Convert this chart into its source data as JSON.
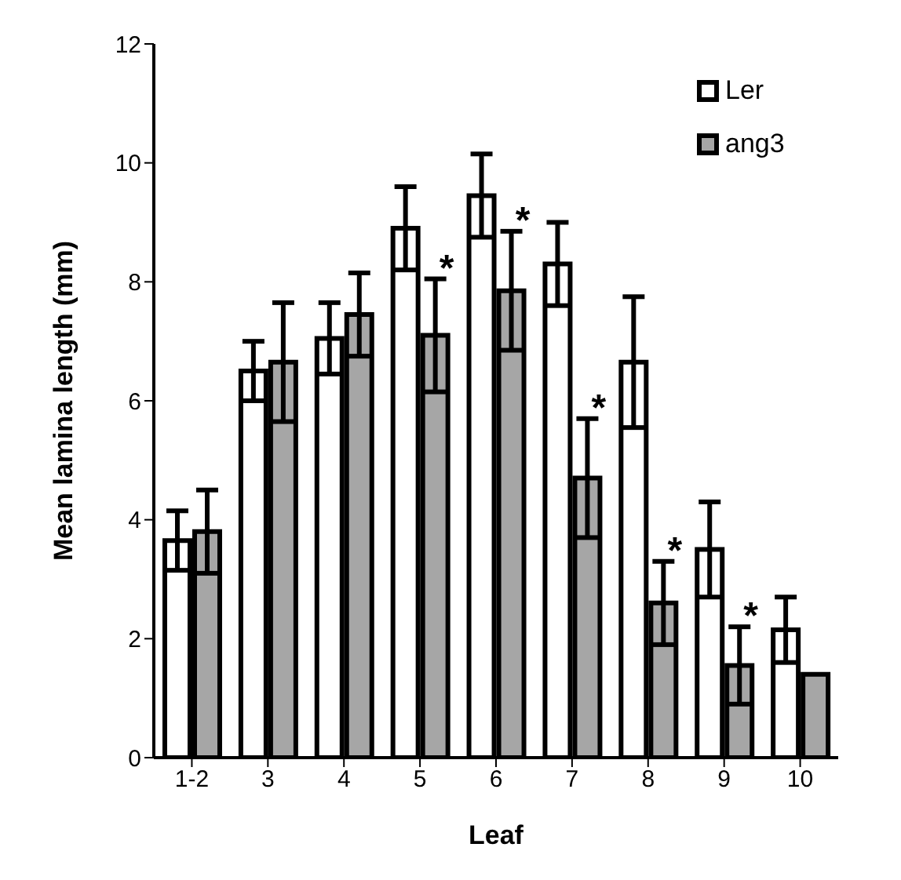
{
  "chart_data": {
    "type": "bar",
    "xlabel": "Leaf",
    "ylabel": "Mean lamina length (mm)",
    "categories": [
      "1-2",
      "3",
      "4",
      "5",
      "6",
      "7",
      "8",
      "9",
      "10"
    ],
    "series": [
      {
        "name": "Ler",
        "color": "#ffffff",
        "values": [
          3.65,
          6.5,
          7.05,
          8.9,
          9.45,
          8.3,
          6.65,
          3.5,
          2.15
        ],
        "errors": [
          0.5,
          0.5,
          0.6,
          0.7,
          0.7,
          0.7,
          1.1,
          0.8,
          0.55
        ]
      },
      {
        "name": "ang3",
        "color": "#a6a6a6",
        "values": [
          3.8,
          6.65,
          7.45,
          7.1,
          7.85,
          4.7,
          2.6,
          1.55,
          1.4
        ],
        "errors": [
          0.7,
          1.0,
          0.7,
          0.95,
          1.0,
          1.0,
          0.7,
          0.65,
          null
        ]
      }
    ],
    "ylim": [
      0,
      12
    ],
    "yticks": [
      0,
      2,
      4,
      6,
      8,
      10,
      12
    ],
    "grid": false,
    "legend": "top right",
    "annotations": [
      {
        "text": "*",
        "x": "5",
        "y": 8.05
      },
      {
        "text": "*",
        "x": "6",
        "y": 8.85
      },
      {
        "text": "*",
        "x": "7",
        "y": 5.7
      },
      {
        "text": "*",
        "x": "8",
        "y": 3.3
      },
      {
        "text": "*",
        "x": "9",
        "y": 2.2
      }
    ]
  }
}
